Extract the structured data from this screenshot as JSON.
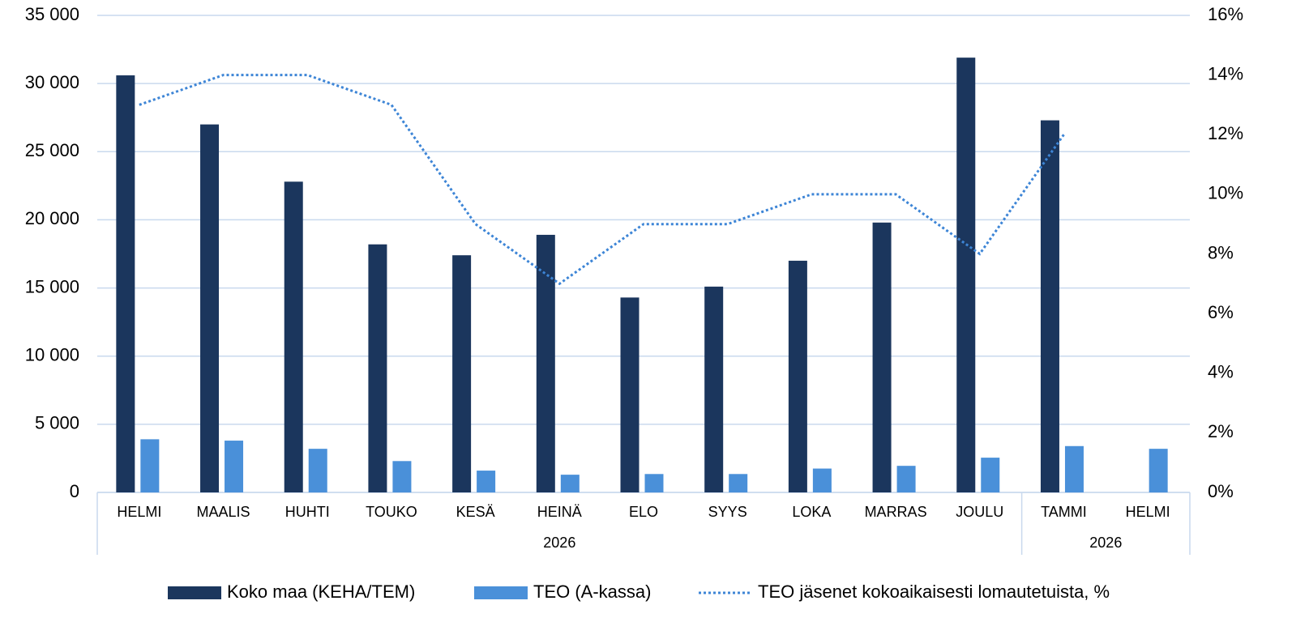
{
  "chart_data": {
    "type": "bar",
    "categories": [
      "HELMI",
      "MAALIS",
      "HUHTI",
      "TOUKO",
      "KESÄ",
      "HEINÄ",
      "ELO",
      "SYYS",
      "LOKA",
      "MARRAS",
      "JOULU",
      "TAMMI",
      "HELMI"
    ],
    "groups": [
      {
        "label": "2026",
        "count": 11
      },
      {
        "label": "2026",
        "count": 2
      }
    ],
    "series": [
      {
        "name": "Koko maa (KEHA/TEM)",
        "type": "bar",
        "color": "#1b365d",
        "values": [
          30600,
          27000,
          22800,
          18200,
          17400,
          18900,
          14300,
          15100,
          17000,
          19800,
          31900,
          27300,
          null
        ]
      },
      {
        "name": "TEO (A-kassa)",
        "type": "bar",
        "color": "#4a90d9",
        "values": [
          3900,
          3800,
          3200,
          2300,
          1600,
          1300,
          1350,
          1350,
          1750,
          1950,
          2550,
          3400,
          3200
        ]
      },
      {
        "name": "TEO jäsenet kokoaikaisesti lomautetuista, %",
        "type": "line",
        "axis": "y2",
        "color": "#3d85d6",
        "dash": "dotted",
        "values": [
          13,
          14,
          14,
          13,
          9,
          7,
          9,
          9,
          10,
          10,
          8,
          12,
          null
        ]
      }
    ],
    "ylim": [
      0,
      35000
    ],
    "yticks": [
      0,
      {
        "value": 5000,
        "label": "5 000"
      },
      {
        "value": 10000,
        "label": "10 000"
      },
      {
        "value": 15000,
        "label": "15 000"
      },
      {
        "value": 20000,
        "label": "20 000"
      },
      {
        "value": 25000,
        "label": "25 000"
      },
      {
        "value": 30000,
        "label": "30 000"
      },
      {
        "value": 35000,
        "label": "35 000"
      }
    ],
    "y2lim": [
      0,
      16
    ],
    "y2ticks": [
      {
        "value": 0,
        "label": "0%"
      },
      {
        "value": 2,
        "label": "2%"
      },
      {
        "value": 4,
        "label": "4%"
      },
      {
        "value": 6,
        "label": "6%"
      },
      {
        "value": 8,
        "label": "8%"
      },
      {
        "value": 10,
        "label": "10%"
      },
      {
        "value": 12,
        "label": "12%"
      },
      {
        "value": 14,
        "label": "14%"
      },
      {
        "value": 16,
        "label": "16%"
      }
    ],
    "grid": true,
    "legend": "bottom"
  }
}
